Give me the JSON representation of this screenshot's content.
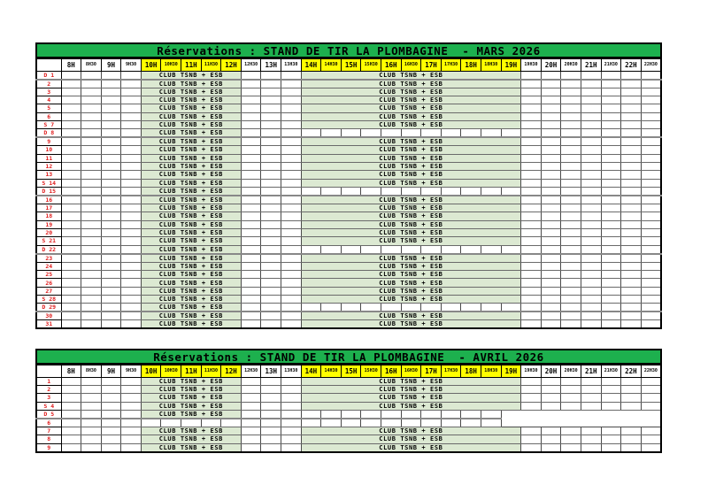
{
  "document": {
    "kind": "reservation-schedule"
  },
  "band_text": "CLUB TSNB + ESB",
  "colors": {
    "title_bg": "#1db04e",
    "highlight": "#ffff00",
    "band_bg": "#dce9d2",
    "day_label": "#e02020"
  },
  "bands": {
    "morning": {
      "start": 4,
      "span": 5
    },
    "afternoon": {
      "start": 12,
      "span": 11
    }
  },
  "plain_tail_start": 22,
  "columns": [
    {
      "label": "8H",
      "kind": "hour",
      "highlight": false
    },
    {
      "label": "8H30",
      "kind": "half",
      "highlight": false
    },
    {
      "label": "9H",
      "kind": "hour",
      "highlight": false
    },
    {
      "label": "9H30",
      "kind": "half",
      "highlight": false
    },
    {
      "label": "10H",
      "kind": "hour",
      "highlight": true
    },
    {
      "label": "10H30",
      "kind": "half",
      "highlight": true
    },
    {
      "label": "11H",
      "kind": "hour",
      "highlight": true
    },
    {
      "label": "11H30",
      "kind": "half",
      "highlight": true
    },
    {
      "label": "12H",
      "kind": "hour",
      "highlight": true
    },
    {
      "label": "12H30",
      "kind": "half",
      "highlight": false
    },
    {
      "label": "13H",
      "kind": "hour",
      "highlight": false
    },
    {
      "label": "13H30",
      "kind": "half",
      "highlight": false
    },
    {
      "label": "14H",
      "kind": "hour",
      "highlight": true
    },
    {
      "label": "14H30",
      "kind": "half",
      "highlight": true
    },
    {
      "label": "15H",
      "kind": "hour",
      "highlight": true
    },
    {
      "label": "15H30",
      "kind": "half",
      "highlight": true
    },
    {
      "label": "16H",
      "kind": "hour",
      "highlight": true
    },
    {
      "label": "16H30",
      "kind": "half",
      "highlight": true
    },
    {
      "label": "17H",
      "kind": "hour",
      "highlight": true
    },
    {
      "label": "17H30",
      "kind": "half",
      "highlight": true
    },
    {
      "label": "18H",
      "kind": "hour",
      "highlight": true
    },
    {
      "label": "18H30",
      "kind": "half",
      "highlight": true
    },
    {
      "label": "19H",
      "kind": "hour",
      "highlight": true
    },
    {
      "label": "19H30",
      "kind": "half",
      "highlight": false
    },
    {
      "label": "20H",
      "kind": "hour",
      "highlight": false
    },
    {
      "label": "20H30",
      "kind": "half",
      "highlight": false
    },
    {
      "label": "21H",
      "kind": "hour",
      "highlight": false
    },
    {
      "label": "21H30",
      "kind": "half",
      "highlight": false
    },
    {
      "label": "22H",
      "kind": "hour",
      "highlight": false
    },
    {
      "label": "22H30",
      "kind": "half",
      "highlight": false
    }
  ],
  "tables": [
    {
      "title": "Réservations : STAND DE TIR LA PLOMBAGINE  - MARS 2026",
      "rows": [
        {
          "label": "D 1",
          "morning": true,
          "afternoon": true,
          "sep": true
        },
        {
          "label": "2",
          "morning": true,
          "afternoon": true
        },
        {
          "label": "3",
          "morning": true,
          "afternoon": true
        },
        {
          "label": "4",
          "morning": true,
          "afternoon": true
        },
        {
          "label": "5",
          "morning": true,
          "afternoon": true
        },
        {
          "label": "6",
          "morning": true,
          "afternoon": true
        },
        {
          "label": "S 7",
          "morning": true,
          "afternoon": true
        },
        {
          "label": "D 8",
          "morning": true,
          "afternoon": false,
          "sep": true
        },
        {
          "label": "9",
          "morning": true,
          "afternoon": true
        },
        {
          "label": "10",
          "morning": true,
          "afternoon": true
        },
        {
          "label": "11",
          "morning": true,
          "afternoon": true
        },
        {
          "label": "12",
          "morning": true,
          "afternoon": true
        },
        {
          "label": "13",
          "morning": true,
          "afternoon": true
        },
        {
          "label": "S 14",
          "morning": true,
          "afternoon": true
        },
        {
          "label": "D 15",
          "morning": true,
          "afternoon": false,
          "sep": true
        },
        {
          "label": "16",
          "morning": true,
          "afternoon": true
        },
        {
          "label": "17",
          "morning": true,
          "afternoon": true
        },
        {
          "label": "18",
          "morning": true,
          "afternoon": true
        },
        {
          "label": "19",
          "morning": true,
          "afternoon": true
        },
        {
          "label": "20",
          "morning": true,
          "afternoon": true
        },
        {
          "label": "S 21",
          "morning": true,
          "afternoon": true
        },
        {
          "label": "D 22",
          "morning": true,
          "afternoon": false,
          "sep": true
        },
        {
          "label": "23",
          "morning": true,
          "afternoon": true
        },
        {
          "label": "24",
          "morning": true,
          "afternoon": true
        },
        {
          "label": "25",
          "morning": true,
          "afternoon": true
        },
        {
          "label": "26",
          "morning": true,
          "afternoon": true
        },
        {
          "label": "27",
          "morning": true,
          "afternoon": true
        },
        {
          "label": "S 28",
          "morning": true,
          "afternoon": true
        },
        {
          "label": "D 29",
          "morning": true,
          "afternoon": false,
          "sep": true
        },
        {
          "label": "30",
          "morning": true,
          "afternoon": true
        },
        {
          "label": "31",
          "morning": true,
          "afternoon": true
        }
      ]
    },
    {
      "title": "Réservations : STAND DE TIR LA PLOMBAGINE  - AVRIL 2026",
      "rows": [
        {
          "label": "1",
          "morning": true,
          "afternoon": true
        },
        {
          "label": "2",
          "morning": true,
          "afternoon": true
        },
        {
          "label": "3",
          "morning": true,
          "afternoon": true
        },
        {
          "label": "S 4",
          "morning": true,
          "afternoon": true
        },
        {
          "label": "D 5",
          "morning": true,
          "afternoon": false,
          "sep": true,
          "tail_plain": true
        },
        {
          "label": "6",
          "morning": false,
          "afternoon": false,
          "tail_plain": true
        },
        {
          "label": "7",
          "morning": true,
          "afternoon": true
        },
        {
          "label": "8",
          "morning": true,
          "afternoon": true
        },
        {
          "label": "9",
          "morning": true,
          "afternoon": true
        }
      ]
    }
  ]
}
